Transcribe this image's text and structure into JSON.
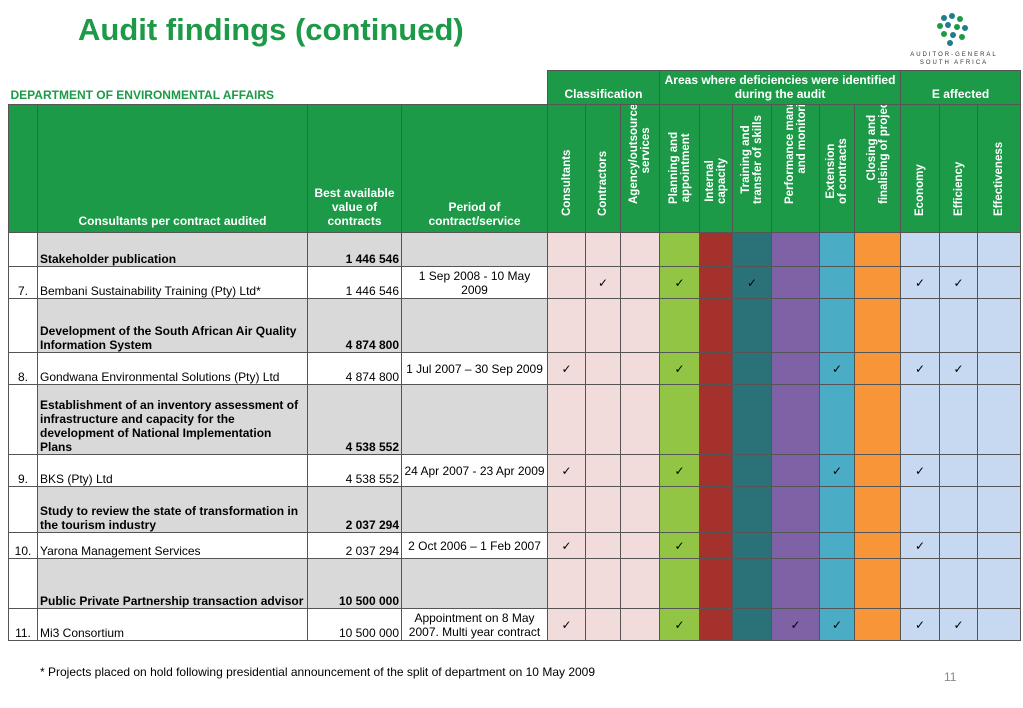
{
  "title": "Audit findings (continued)",
  "logo": {
    "line1": "AUDITOR-GENERAL",
    "line2": "SOUTH AFRICA"
  },
  "department": "DEPARTMENT OF ENVIRONMENTAL AFFAIRS",
  "group_headers": {
    "classification": "Classification",
    "areas": "Areas where deficiencies were identified during the audit",
    "e_affected": "E affected"
  },
  "col_headers": {
    "consultants_per_contract": "Consultants per contract audited",
    "best_value": "Best available value of contracts",
    "period": "Period of contract/service"
  },
  "vertical_headers": [
    "Consultants",
    "Contractors",
    "Agency/outsourced services",
    "Planning and appointment",
    "Internal capacity",
    "Training and transfer of skills",
    "Performance management and monitoring",
    "Extension of contracts",
    "Closing and finalising of projects",
    "Economy",
    "Efficiency",
    "Effectiveness"
  ],
  "check_symbol": "✓",
  "projects": [
    {
      "title": "Stakeholder publication",
      "total": "1 446 546",
      "num": "7.",
      "consultant": "Bembani Sustainability Training (Pty) Ltd*",
      "value": "1 446 546",
      "period": "1 Sep 2008 - 10 May 2009",
      "checks": [
        false,
        true,
        false,
        true,
        false,
        true,
        false,
        false,
        false,
        true,
        true,
        false
      ]
    },
    {
      "title": "Development of the South African Air Quality Information System",
      "total": "4 874 800",
      "num": "8.",
      "consultant": "Gondwana Environmental Solutions (Pty) Ltd",
      "value": "4 874 800",
      "period": "1 Jul 2007 – 30 Sep 2009",
      "checks": [
        true,
        false,
        false,
        true,
        false,
        false,
        false,
        true,
        false,
        true,
        true,
        false
      ]
    },
    {
      "title": "Establishment of an inventory assessment of infrastructure and capacity for the development of National Implementation Plans",
      "total": "4 538 552",
      "num": "9.",
      "consultant": "BKS (Pty) Ltd",
      "value": "4 538 552",
      "period": "24 Apr 2007 - 23 Apr 2009",
      "checks": [
        true,
        false,
        false,
        true,
        false,
        false,
        false,
        true,
        false,
        true,
        false,
        false
      ]
    },
    {
      "title": "Study to review the state of transformation in the tourism industry",
      "total": "2 037 294",
      "num": "10.",
      "consultant": "Yarona Management Services",
      "value": "2 037 294",
      "period": "2 Oct 2006 – 1 Feb 2007",
      "checks": [
        true,
        false,
        false,
        true,
        false,
        false,
        false,
        false,
        false,
        true,
        false,
        false
      ]
    },
    {
      "title": "Public Private Partnership transaction advisor",
      "total": "10 500 000",
      "num": "11.",
      "consultant": "Mi3 Consortium",
      "value": "10 500 000",
      "period": "Appointment on 8 May 2007. Multi year contract",
      "checks": [
        true,
        false,
        false,
        true,
        false,
        false,
        true,
        true,
        false,
        true,
        true,
        false
      ]
    }
  ],
  "footnote": "* Projects placed on hold following presidential announcement of the split of department on 10 May 2009",
  "page_number": "11"
}
